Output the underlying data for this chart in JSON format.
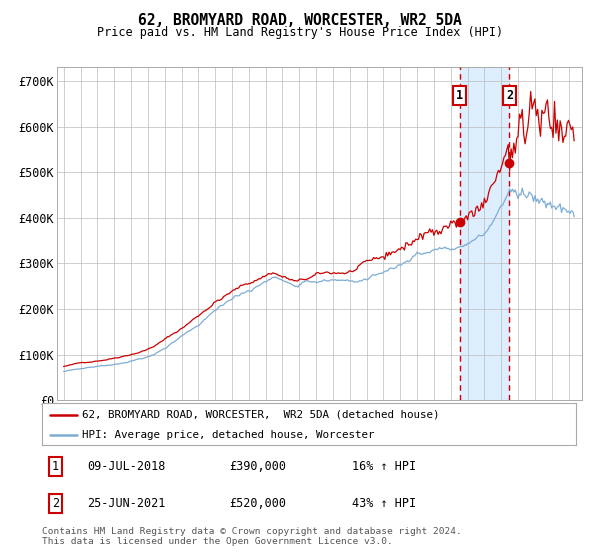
{
  "title": "62, BROMYARD ROAD, WORCESTER, WR2 5DA",
  "subtitle": "Price paid vs. HM Land Registry's House Price Index (HPI)",
  "ylabel_ticks": [
    "£0",
    "£100K",
    "£200K",
    "£300K",
    "£400K",
    "£500K",
    "£600K",
    "£700K"
  ],
  "ytick_values": [
    0,
    100000,
    200000,
    300000,
    400000,
    500000,
    600000,
    700000
  ],
  "ylim": [
    0,
    730000
  ],
  "xlim_start": 1994.6,
  "xlim_end": 2025.8,
  "sale1_x": 2018.52,
  "sale1_y": 390000,
  "sale2_x": 2021.49,
  "sale2_y": 520000,
  "line1_color": "#cc0000",
  "line2_color": "#7eadd4",
  "shade_color": "#ddeeff",
  "grid_color": "#bbbbbb",
  "bg_color": "#ffffff",
  "legend1_text": "62, BROMYARD ROAD, WORCESTER,  WR2 5DA (detached house)",
  "legend2_text": "HPI: Average price, detached house, Worcester",
  "footnote1": "Contains HM Land Registry data © Crown copyright and database right 2024.",
  "footnote2": "This data is licensed under the Open Government Licence v3.0.",
  "table_rows": [
    {
      "num": "1",
      "date": "09-JUL-2018",
      "price": "£390,000",
      "change": "16% ↑ HPI"
    },
    {
      "num": "2",
      "date": "25-JUN-2021",
      "price": "£520,000",
      "change": "43% ↑ HPI"
    }
  ]
}
